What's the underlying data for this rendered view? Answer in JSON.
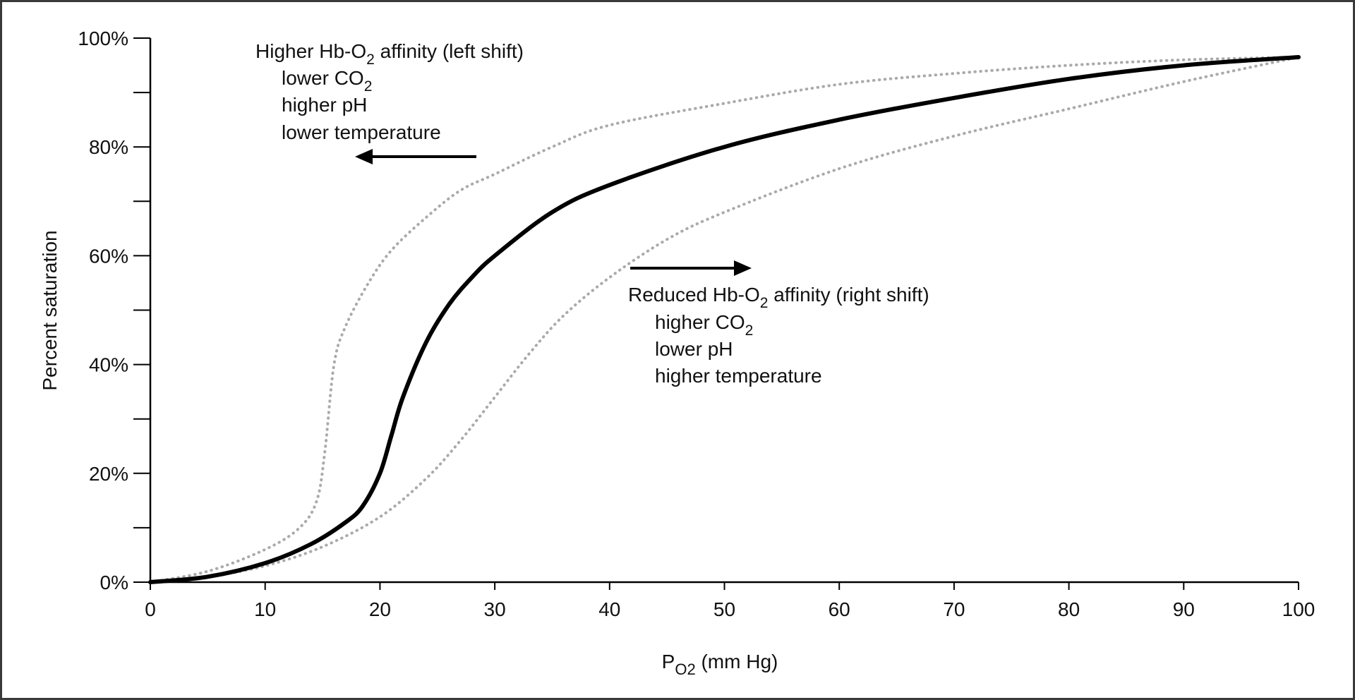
{
  "chart_data": {
    "type": "line",
    "title": "",
    "xlabel": {
      "main": "P",
      "sub": "O2",
      "rest": " (mm Hg)"
    },
    "ylabel": "Percent saturation",
    "xlim": [
      0,
      100
    ],
    "ylim": [
      0,
      100
    ],
    "x_ticks": [
      0,
      10,
      20,
      30,
      40,
      50,
      60,
      70,
      80,
      90,
      100
    ],
    "x_tick_labels": [
      "0",
      "10",
      "20",
      "30",
      "40",
      "50",
      "60",
      "70",
      "80",
      "90",
      "100"
    ],
    "y_ticks": [
      0,
      20,
      40,
      60,
      80,
      100
    ],
    "y_tick_labels": [
      "0%",
      "20%",
      "40%",
      "60%",
      "80%",
      "100%"
    ],
    "grid": false,
    "series": [
      {
        "style": "solid",
        "color": "#000000",
        "x": [
          0,
          5,
          10,
          14,
          17,
          18.5,
          20,
          21,
          22,
          24,
          26,
          28,
          30,
          35,
          40,
          50,
          60,
          70,
          80,
          90,
          100
        ],
        "y": [
          0,
          1,
          3.5,
          7,
          11,
          14,
          20,
          27,
          34,
          44,
          51,
          56,
          60,
          68,
          73,
          80,
          85,
          89,
          92.5,
          95,
          96.5
        ]
      },
      {
        "style": "dotted",
        "color": "#aaaaaa",
        "x": [
          0,
          5,
          10,
          13,
          14.5,
          15.2,
          16,
          17,
          19,
          21,
          24,
          27,
          30,
          35,
          40,
          50,
          60,
          70,
          80,
          90,
          100
        ],
        "y": [
          0,
          2,
          6,
          10,
          15,
          24,
          40,
          47,
          55,
          61,
          67,
          72,
          75,
          80,
          84,
          88,
          91.5,
          93.5,
          95,
          96,
          96.5
        ]
      },
      {
        "style": "dotted",
        "color": "#aaaaaa",
        "x": [
          0,
          5,
          10,
          15,
          20,
          24,
          27,
          30,
          33,
          36,
          40,
          45,
          50,
          60,
          70,
          80,
          90,
          100
        ],
        "y": [
          0,
          1,
          3,
          6.5,
          12,
          19,
          26,
          34,
          42,
          49,
          56,
          63,
          68,
          76,
          82,
          87,
          92,
          96.5
        ]
      }
    ],
    "annotations": {
      "left": {
        "heading": {
          "a": "Higher Hb-O",
          "sub": "2",
          "b": " affinity (left shift)"
        },
        "line1": {
          "a": "lower CO",
          "sub": "2"
        },
        "line2": "higher pH",
        "line3": "lower temperature"
      },
      "right": {
        "heading": {
          "a": "Reduced Hb-O",
          "sub": "2",
          "b": " affinity (right shift)"
        },
        "line1": {
          "a": "higher CO",
          "sub": "2"
        },
        "line2": "lower pH",
        "line3": "higher temperature"
      }
    }
  }
}
